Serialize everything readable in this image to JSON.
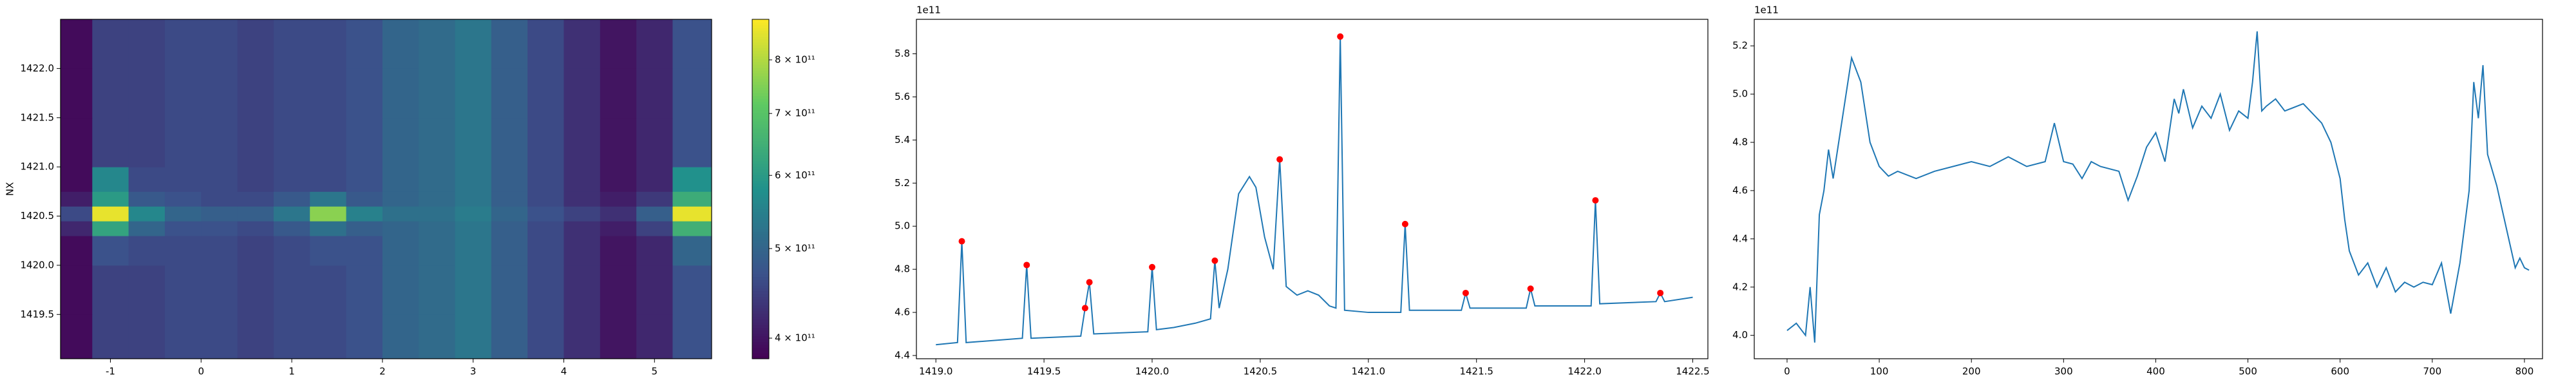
{
  "chart_data": [
    {
      "type": "heatmap",
      "ylabel": "NX",
      "xlim": [
        -1.55,
        5.63
      ],
      "ylim": [
        1419.05,
        1422.5
      ],
      "xticks": [
        -1,
        0,
        1,
        2,
        3,
        4,
        5
      ],
      "yticks": [
        {
          "value": 1419.5,
          "label": "1419.5"
        },
        {
          "value": 1420,
          "label": "1420.0"
        },
        {
          "value": 1420.5,
          "label": "1420.5"
        },
        {
          "value": 1421,
          "label": "1421.0"
        },
        {
          "value": 1421.5,
          "label": "1421.5"
        },
        {
          "value": 1422,
          "label": "1422.0"
        }
      ],
      "x_edges": [
        -1.55,
        -1.2,
        -0.8,
        -0.4,
        0,
        0.4,
        0.8,
        1.2,
        1.6,
        2.0,
        2.4,
        2.8,
        3.2,
        3.6,
        4.0,
        4.4,
        4.8,
        5.2,
        5.63
      ],
      "y_edges": [
        1419.05,
        1419.5,
        1420.0,
        1420.3,
        1420.45,
        1420.6,
        1420.75,
        1421.0,
        1421.5,
        1422.0,
        1422.5
      ],
      "values": [
        [
          390000000000.0,
          450000000000.0,
          450000000000.0,
          460000000000.0,
          460000000000.0,
          450000000000.0,
          460000000000.0,
          460000000000.0,
          470000000000.0,
          500000000000.0,
          510000000000.0,
          530000000000.0,
          490000000000.0,
          460000000000.0,
          430000000000.0,
          400000000000.0,
          420000000000.0,
          470000000000.0
        ],
        [
          390000000000.0,
          450000000000.0,
          450000000000.0,
          460000000000.0,
          460000000000.0,
          450000000000.0,
          460000000000.0,
          460000000000.0,
          470000000000.0,
          500000000000.0,
          510000000000.0,
          530000000000.0,
          490000000000.0,
          460000000000.0,
          430000000000.0,
          400000000000.0,
          420000000000.0,
          470000000000.0
        ],
        [
          390000000000.0,
          470000000000.0,
          460000000000.0,
          460000000000.0,
          460000000000.0,
          450000000000.0,
          460000000000.0,
          470000000000.0,
          470000000000.0,
          500000000000.0,
          510000000000.0,
          530000000000.0,
          490000000000.0,
          460000000000.0,
          430000000000.0,
          400000000000.0,
          420000000000.0,
          500000000000.0
        ],
        [
          420000000000.0,
          620000000000.0,
          500000000000.0,
          470000000000.0,
          470000000000.0,
          460000000000.0,
          480000000000.0,
          520000000000.0,
          490000000000.0,
          500000000000.0,
          510000000000.0,
          530000000000.0,
          490000000000.0,
          460000000000.0,
          430000000000.0,
          410000000000.0,
          450000000000.0,
          650000000000.0
        ],
        [
          460000000000.0,
          860000000000.0,
          560000000000.0,
          500000000000.0,
          490000000000.0,
          490000000000.0,
          530000000000.0,
          760000000000.0,
          550000000000.0,
          520000000000.0,
          520000000000.0,
          540000000000.0,
          500000000000.0,
          470000000000.0,
          450000000000.0,
          430000000000.0,
          490000000000.0,
          860000000000.0
        ],
        [
          410000000000.0,
          600000000000.0,
          480000000000.0,
          470000000000.0,
          460000000000.0,
          460000000000.0,
          480000000000.0,
          530000000000.0,
          480000000000.0,
          500000000000.0,
          510000000000.0,
          530000000000.0,
          490000000000.0,
          460000000000.0,
          430000000000.0,
          410000000000.0,
          440000000000.0,
          640000000000.0
        ],
        [
          390000000000.0,
          560000000000.0,
          460000000000.0,
          460000000000.0,
          460000000000.0,
          450000000000.0,
          460000000000.0,
          460000000000.0,
          470000000000.0,
          500000000000.0,
          510000000000.0,
          530000000000.0,
          490000000000.0,
          460000000000.0,
          430000000000.0,
          400000000000.0,
          420000000000.0,
          580000000000.0
        ],
        [
          390000000000.0,
          450000000000.0,
          450000000000.0,
          460000000000.0,
          460000000000.0,
          450000000000.0,
          460000000000.0,
          460000000000.0,
          470000000000.0,
          500000000000.0,
          510000000000.0,
          530000000000.0,
          490000000000.0,
          460000000000.0,
          430000000000.0,
          400000000000.0,
          420000000000.0,
          470000000000.0
        ],
        [
          390000000000.0,
          450000000000.0,
          450000000000.0,
          460000000000.0,
          460000000000.0,
          450000000000.0,
          460000000000.0,
          460000000000.0,
          470000000000.0,
          500000000000.0,
          510000000000.0,
          530000000000.0,
          490000000000.0,
          460000000000.0,
          430000000000.0,
          400000000000.0,
          420000000000.0,
          470000000000.0
        ],
        [
          390000000000.0,
          450000000000.0,
          450000000000.0,
          460000000000.0,
          460000000000.0,
          450000000000.0,
          460000000000.0,
          460000000000.0,
          470000000000.0,
          500000000000.0,
          510000000000.0,
          530000000000.0,
          490000000000.0,
          460000000000.0,
          430000000000.0,
          400000000000.0,
          420000000000.0,
          470000000000.0
        ]
      ],
      "colorbar": {
        "cmap": "viridis",
        "log_scale": true,
        "clim": [
          380000000000.0,
          885000000000.0
        ],
        "ticks": [
          {
            "value": 400000000000.0,
            "label": "4 × 10¹¹"
          },
          {
            "value": 500000000000.0,
            "label": "5 × 10¹¹"
          },
          {
            "value": 600000000000.0,
            "label": "6 × 10¹¹"
          },
          {
            "value": 700000000000.0,
            "label": "7 × 10¹¹"
          },
          {
            "value": 800000000000.0,
            "label": "8 × 10¹¹"
          }
        ]
      }
    },
    {
      "type": "line",
      "y_offset_text": "1e11",
      "xlim": [
        1418.91,
        1422.57
      ],
      "ylim": [
        4.385,
        5.96
      ],
      "xticks": [
        {
          "value": 1419,
          "label": "1419.0"
        },
        {
          "value": 1419.5,
          "label": "1419.5"
        },
        {
          "value": 1420,
          "label": "1420.0"
        },
        {
          "value": 1420.5,
          "label": "1420.5"
        },
        {
          "value": 1421,
          "label": "1421.0"
        },
        {
          "value": 1421.5,
          "label": "1421.5"
        },
        {
          "value": 1422,
          "label": "1422.0"
        },
        {
          "value": 1422.5,
          "label": "1422.5"
        }
      ],
      "yticks": [
        4.4,
        4.6,
        4.8,
        {
          "value": 5,
          "label": "5.0"
        },
        5.2,
        5.4,
        5.6,
        5.8
      ],
      "series": [
        {
          "style": "line",
          "color": "#1f77b4",
          "x": [
            1419.0,
            1419.1,
            1419.12,
            1419.14,
            1419.4,
            1419.42,
            1419.44,
            1419.67,
            1419.69,
            1419.71,
            1419.73,
            1419.98,
            1420.0,
            1420.02,
            1420.1,
            1420.2,
            1420.27,
            1420.29,
            1420.31,
            1420.35,
            1420.4,
            1420.45,
            1420.48,
            1420.52,
            1420.56,
            1420.59,
            1420.62,
            1420.67,
            1420.72,
            1420.77,
            1420.82,
            1420.85,
            1420.87,
            1420.89,
            1421.0,
            1421.15,
            1421.17,
            1421.19,
            1421.43,
            1421.45,
            1421.47,
            1421.73,
            1421.75,
            1421.77,
            1422.03,
            1422.05,
            1422.07,
            1422.33,
            1422.35,
            1422.37,
            1422.5
          ],
          "values": [
            4.45,
            4.46,
            4.93,
            4.46,
            4.48,
            4.82,
            4.48,
            4.49,
            4.62,
            4.74,
            4.5,
            4.51,
            4.81,
            4.52,
            4.53,
            4.55,
            4.57,
            4.84,
            4.62,
            4.8,
            5.15,
            5.23,
            5.18,
            4.95,
            4.8,
            5.31,
            4.72,
            4.68,
            4.7,
            4.68,
            4.63,
            4.62,
            5.88,
            4.61,
            4.6,
            4.6,
            5.01,
            4.61,
            4.61,
            4.69,
            4.62,
            4.62,
            4.71,
            4.63,
            4.63,
            5.12,
            4.64,
            4.65,
            4.69,
            4.65,
            4.67
          ]
        },
        {
          "style": "points",
          "color": "#ff0000",
          "x": [
            1419.12,
            1419.42,
            1419.69,
            1419.71,
            1420.0,
            1420.29,
            1420.59,
            1420.87,
            1421.17,
            1421.45,
            1421.75,
            1422.05,
            1422.35
          ],
          "values": [
            4.93,
            4.82,
            4.62,
            4.74,
            4.81,
            4.84,
            5.31,
            5.88,
            5.01,
            4.69,
            4.71,
            5.12,
            4.69
          ]
        }
      ]
    },
    {
      "type": "line",
      "y_offset_text": "1e11",
      "xlim": [
        -35.6,
        819.6
      ],
      "ylim": [
        3.903,
        5.31
      ],
      "xticks": [
        0,
        100,
        200,
        300,
        400,
        500,
        600,
        700,
        800
      ],
      "yticks": [
        {
          "value": 4,
          "label": "4.0"
        },
        4.2,
        4.4,
        4.6,
        4.8,
        {
          "value": 5,
          "label": "5.0"
        },
        5.2
      ],
      "series": [
        {
          "style": "line",
          "color": "#1f77b4",
          "x": [
            0,
            10,
            20,
            25,
            30,
            35,
            40,
            45,
            50,
            60,
            70,
            80,
            90,
            100,
            110,
            120,
            140,
            160,
            180,
            200,
            220,
            240,
            260,
            280,
            290,
            300,
            310,
            320,
            330,
            340,
            360,
            370,
            380,
            390,
            400,
            410,
            420,
            425,
            430,
            440,
            450,
            460,
            470,
            480,
            490,
            500,
            505,
            510,
            515,
            520,
            530,
            540,
            560,
            580,
            590,
            600,
            605,
            610,
            620,
            630,
            640,
            650,
            660,
            670,
            680,
            690,
            700,
            710,
            720,
            730,
            740,
            745,
            750,
            755,
            760,
            770,
            780,
            790,
            795,
            800,
            805
          ],
          "values": [
            4.02,
            4.05,
            4.0,
            4.2,
            3.97,
            4.5,
            4.6,
            4.77,
            4.65,
            4.9,
            5.15,
            5.05,
            4.8,
            4.7,
            4.66,
            4.68,
            4.65,
            4.68,
            4.7,
            4.72,
            4.7,
            4.74,
            4.7,
            4.72,
            4.88,
            4.72,
            4.71,
            4.65,
            4.72,
            4.7,
            4.68,
            4.56,
            4.66,
            4.78,
            4.84,
            4.72,
            4.98,
            4.92,
            5.02,
            4.86,
            4.95,
            4.9,
            5.0,
            4.85,
            4.93,
            4.9,
            5.05,
            5.26,
            4.93,
            4.95,
            4.98,
            4.93,
            4.96,
            4.88,
            4.8,
            4.65,
            4.48,
            4.35,
            4.25,
            4.3,
            4.2,
            4.28,
            4.18,
            4.22,
            4.2,
            4.22,
            4.21,
            4.3,
            4.09,
            4.3,
            4.6,
            5.05,
            4.9,
            5.12,
            4.75,
            4.62,
            4.45,
            4.28,
            4.32,
            4.28,
            4.27
          ]
        }
      ]
    }
  ]
}
